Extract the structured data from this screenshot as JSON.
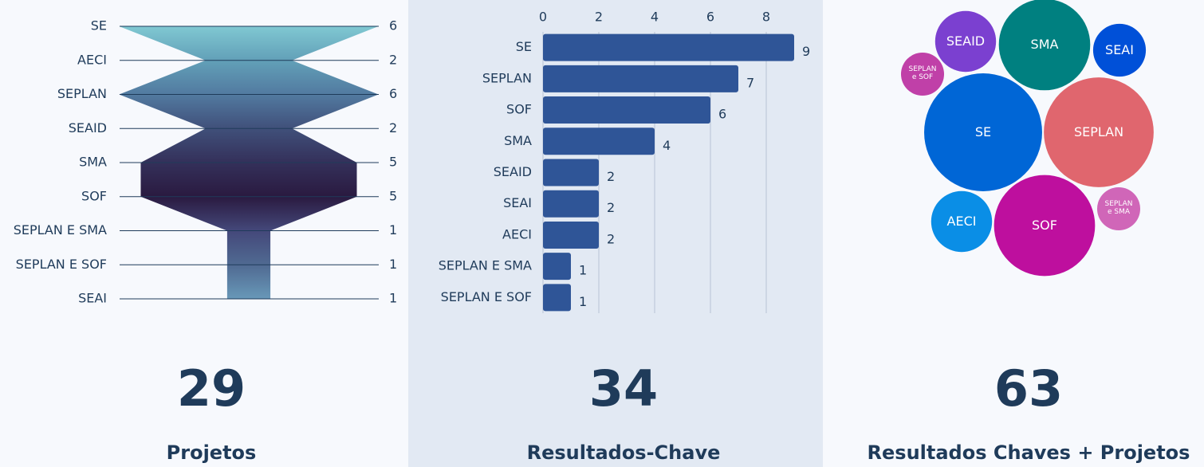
{
  "chart_data": [
    {
      "type": "funnel",
      "categories": [
        "SE",
        "AECI",
        "SEPLAN",
        "SEAID",
        "SMA",
        "SOF",
        "SEPLAN E SMA",
        "SEPLAN E SOF",
        "SEAI"
      ],
      "values": [
        6,
        2,
        6,
        2,
        5,
        5,
        1,
        1,
        1
      ],
      "colors": [
        "#80c8d2",
        "#62a0b8",
        "#527aa0",
        "#40507a",
        "#34305a",
        "#2a1a40",
        "#44487a",
        "#506a92",
        "#6898b8"
      ],
      "total": 29,
      "caption": "Projetos"
    },
    {
      "type": "bar",
      "categories": [
        "SE",
        "SEPLAN",
        "SOF",
        "SMA",
        "SEAID",
        "SEAI",
        "AECI",
        "SEPLAN E SMA",
        "SEPLAN E SOF"
      ],
      "values": [
        9,
        7,
        6,
        4,
        2,
        2,
        2,
        1,
        1
      ],
      "color": "#2f5597",
      "xlim": [
        0,
        9
      ],
      "xticks": [
        0,
        2,
        4,
        6,
        8
      ],
      "grid": true,
      "total": 34,
      "caption": "Resultados-Chave"
    },
    {
      "type": "bubble",
      "categories": [
        "SE",
        "SEPLAN",
        "SOF",
        "SMA",
        "SEAID",
        "AECI",
        "SEAI",
        "SEPLAN e SMA",
        "SEPLAN e SOF"
      ],
      "values": [
        15,
        13,
        11,
        9,
        4,
        4,
        3,
        2,
        2
      ],
      "colors": [
        "#0066d6",
        "#e0666e",
        "#be0f9e",
        "#008080",
        "#7b40d0",
        "#0a8ee6",
        "#0050d8",
        "#d066b8",
        "#c040a8"
      ],
      "total": 63,
      "caption": "Resultados Chaves + Projetos"
    }
  ]
}
